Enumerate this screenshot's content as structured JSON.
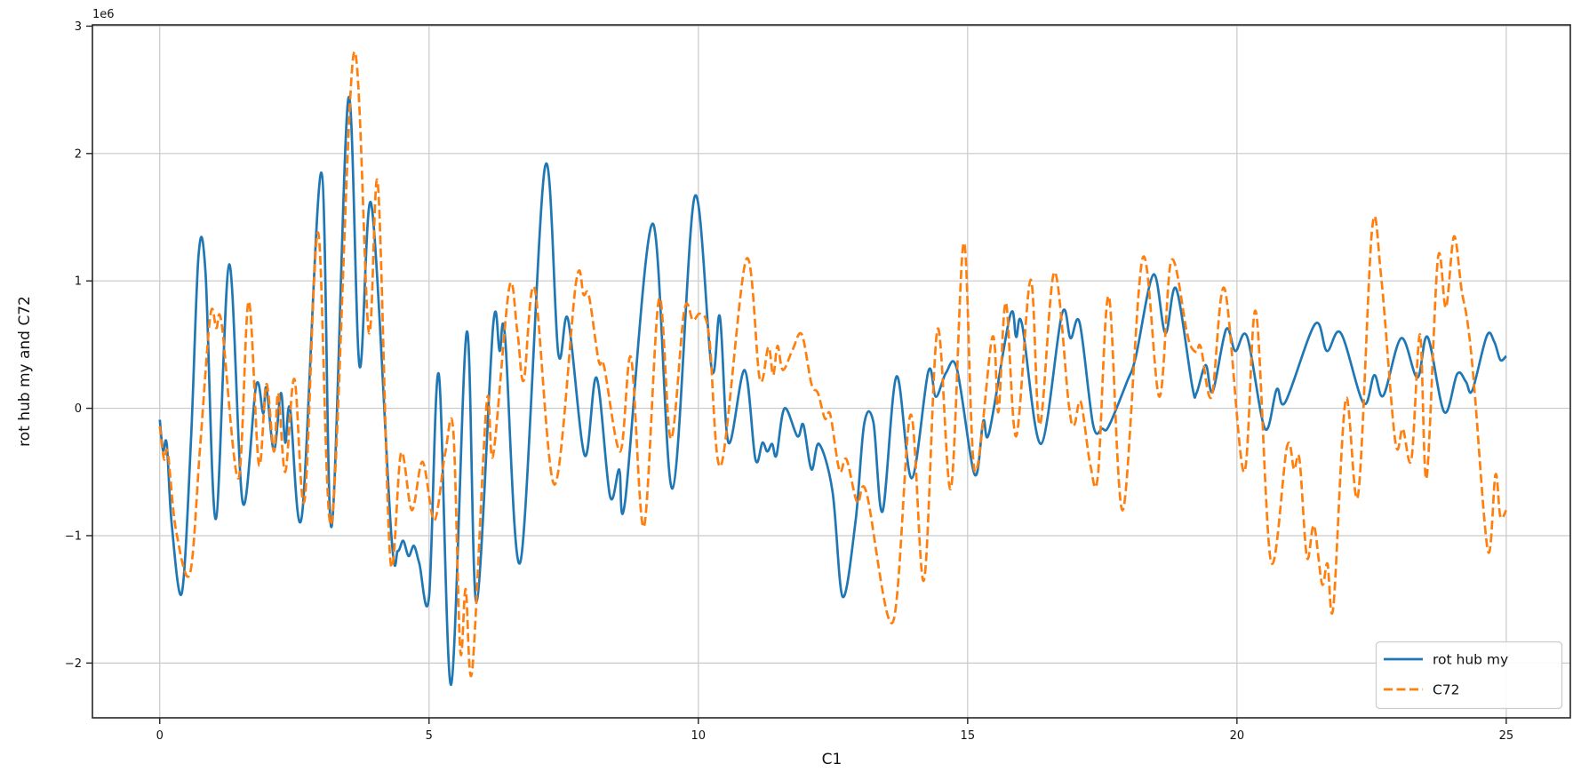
{
  "axes": {
    "xlabel": "C1",
    "ylabel": "rot hub my and C72",
    "offset_text": "1e6",
    "x_tick_labels": [
      "0",
      "5",
      "10",
      "15",
      "20",
      "25"
    ],
    "y_tick_labels": [
      "−2",
      "−1",
      "0",
      "1",
      "2",
      "3"
    ]
  },
  "legend": {
    "position": "lower right",
    "items": [
      {
        "label": "rot hub my",
        "color": "#1f77b4",
        "style": "solid"
      },
      {
        "label": "C72",
        "color": "#ff7f0e",
        "style": "dashed"
      }
    ]
  },
  "chart_data": {
    "type": "line",
    "title": "",
    "xlabel": "C1",
    "ylabel": "rot hub my and C72",
    "grid": true,
    "legend_position": "lower right",
    "x_ticks": [
      0,
      5,
      10,
      15,
      20,
      25
    ],
    "y_ticks_e6": [
      -2,
      -1,
      0,
      1,
      2,
      3
    ],
    "xlim": [
      -1.25,
      26.19
    ],
    "ylim_e6": [
      -2.43,
      3.01
    ],
    "y_unit_multiplier": 1000000,
    "series": [
      {
        "name": "rot hub my",
        "color": "#1f77b4",
        "style": "solid",
        "points_e6": [
          [
            0,
            -0.09
          ],
          [
            0.06,
            -0.33
          ],
          [
            0.13,
            -0.28
          ],
          [
            0.22,
            -0.9
          ],
          [
            0.41,
            -1.45
          ],
          [
            0.58,
            -0.25
          ],
          [
            0.72,
            1.2
          ],
          [
            0.85,
            1.06
          ],
          [
            1.04,
            -0.87
          ],
          [
            1.29,
            1.13
          ],
          [
            1.54,
            -0.74
          ],
          [
            1.79,
            0.18
          ],
          [
            1.92,
            -0.04
          ],
          [
            1.98,
            0.16
          ],
          [
            2.12,
            -0.33
          ],
          [
            2.25,
            0.12
          ],
          [
            2.33,
            -0.27
          ],
          [
            2.42,
            0
          ],
          [
            2.64,
            -0.84
          ],
          [
            3.0,
            1.85
          ],
          [
            3.19,
            -0.93
          ],
          [
            3.5,
            2.43
          ],
          [
            3.71,
            0.33
          ],
          [
            3.93,
            1.6
          ],
          [
            4.3,
            -1.0
          ],
          [
            4.42,
            -1.12
          ],
          [
            4.52,
            -1.04
          ],
          [
            4.62,
            -1.16
          ],
          [
            4.72,
            -1.08
          ],
          [
            4.82,
            -1.22
          ],
          [
            5.0,
            -1.48
          ],
          [
            5.18,
            0.27
          ],
          [
            5.41,
            -2.17
          ],
          [
            5.7,
            0.6
          ],
          [
            5.88,
            -1.52
          ],
          [
            6.19,
            0.65
          ],
          [
            6.31,
            0.45
          ],
          [
            6.41,
            0.57
          ],
          [
            6.7,
            -1.2
          ],
          [
            7.15,
            1.89
          ],
          [
            7.4,
            0.43
          ],
          [
            7.58,
            0.7
          ],
          [
            7.89,
            -0.37
          ],
          [
            8.11,
            0.24
          ],
          [
            8.36,
            -0.69
          ],
          [
            8.53,
            -0.48
          ],
          [
            8.64,
            -0.73
          ],
          [
            9.15,
            1.45
          ],
          [
            9.52,
            -0.63
          ],
          [
            9.93,
            1.66
          ],
          [
            10.25,
            0.3
          ],
          [
            10.4,
            0.72
          ],
          [
            10.56,
            -0.27
          ],
          [
            10.86,
            0.3
          ],
          [
            11.06,
            -0.4
          ],
          [
            11.19,
            -0.27
          ],
          [
            11.28,
            -0.34
          ],
          [
            11.37,
            -0.28
          ],
          [
            11.45,
            -0.37
          ],
          [
            11.6,
            0
          ],
          [
            11.84,
            -0.22
          ],
          [
            11.95,
            -0.13
          ],
          [
            12.1,
            -0.48
          ],
          [
            12.24,
            -0.28
          ],
          [
            12.49,
            -0.65
          ],
          [
            12.68,
            -1.48
          ],
          [
            12.92,
            -0.88
          ],
          [
            13.08,
            -0.12
          ],
          [
            13.25,
            -0.11
          ],
          [
            13.42,
            -0.81
          ],
          [
            13.68,
            0.25
          ],
          [
            13.96,
            -0.55
          ],
          [
            14.27,
            0.29
          ],
          [
            14.41,
            0.09
          ],
          [
            14.6,
            0.28
          ],
          [
            14.8,
            0.31
          ],
          [
            15.13,
            -0.52
          ],
          [
            15.29,
            -0.1
          ],
          [
            15.4,
            -0.19
          ],
          [
            15.79,
            0.73
          ],
          [
            15.9,
            0.56
          ],
          [
            16.01,
            0.66
          ],
          [
            16.36,
            -0.28
          ],
          [
            16.75,
            0.74
          ],
          [
            16.91,
            0.55
          ],
          [
            17.08,
            0.67
          ],
          [
            17.33,
            -0.13
          ],
          [
            17.5,
            -0.16
          ],
          [
            17.62,
            -0.14
          ],
          [
            17.96,
            0.21
          ],
          [
            18.12,
            0.4
          ],
          [
            18.45,
            1.05
          ],
          [
            18.67,
            0.59
          ],
          [
            18.87,
            0.94
          ],
          [
            19.17,
            0.17
          ],
          [
            19.25,
            0.12
          ],
          [
            19.42,
            0.34
          ],
          [
            19.55,
            0.13
          ],
          [
            19.8,
            0.62
          ],
          [
            19.97,
            0.45
          ],
          [
            20.19,
            0.56
          ],
          [
            20.52,
            -0.16
          ],
          [
            20.74,
            0.15
          ],
          [
            20.9,
            0.05
          ],
          [
            21.45,
            0.66
          ],
          [
            21.67,
            0.45
          ],
          [
            21.93,
            0.59
          ],
          [
            22.35,
            0.04
          ],
          [
            22.55,
            0.26
          ],
          [
            22.72,
            0.1
          ],
          [
            23.05,
            0.55
          ],
          [
            23.35,
            0.24
          ],
          [
            23.54,
            0.56
          ],
          [
            23.85,
            -0.03
          ],
          [
            24.09,
            0.27
          ],
          [
            24.25,
            0.21
          ],
          [
            24.37,
            0.14
          ],
          [
            24.64,
            0.57
          ],
          [
            24.78,
            0.52
          ],
          [
            24.89,
            0.38
          ],
          [
            25.0,
            0.41
          ]
        ]
      },
      {
        "name": "C72",
        "color": "#ff7f0e",
        "style": "dashed",
        "points_e6": [
          [
            0,
            -0.14
          ],
          [
            0.08,
            -0.4
          ],
          [
            0.15,
            -0.35
          ],
          [
            0.3,
            -0.95
          ],
          [
            0.56,
            -1.3
          ],
          [
            0.75,
            -0.3
          ],
          [
            0.94,
            0.73
          ],
          [
            1.05,
            0.63
          ],
          [
            1.15,
            0.66
          ],
          [
            1.46,
            -0.55
          ],
          [
            1.65,
            0.84
          ],
          [
            1.84,
            -0.44
          ],
          [
            1.98,
            0.19
          ],
          [
            2.12,
            -0.34
          ],
          [
            2.2,
            0.12
          ],
          [
            2.33,
            -0.5
          ],
          [
            2.5,
            0.23
          ],
          [
            2.69,
            -0.72
          ],
          [
            2.94,
            1.38
          ],
          [
            3.19,
            -0.9
          ],
          [
            3.6,
            2.78
          ],
          [
            3.88,
            0.6
          ],
          [
            4.05,
            1.76
          ],
          [
            4.28,
            -1.18
          ],
          [
            4.48,
            -0.35
          ],
          [
            4.68,
            -0.8
          ],
          [
            4.88,
            -0.42
          ],
          [
            5.1,
            -0.88
          ],
          [
            5.3,
            -0.35
          ],
          [
            5.45,
            -0.18
          ],
          [
            5.58,
            -1.9
          ],
          [
            5.68,
            -1.42
          ],
          [
            5.8,
            -2.06
          ],
          [
            6.07,
            0.04
          ],
          [
            6.19,
            -0.37
          ],
          [
            6.49,
            0.95
          ],
          [
            6.64,
            0.6
          ],
          [
            6.76,
            0.22
          ],
          [
            6.96,
            0.94
          ],
          [
            7.33,
            -0.6
          ],
          [
            7.73,
            0.99
          ],
          [
            7.87,
            0.89
          ],
          [
            7.97,
            0.88
          ],
          [
            8.15,
            0.37
          ],
          [
            8.25,
            0.33
          ],
          [
            8.55,
            -0.34
          ],
          [
            8.75,
            0.4
          ],
          [
            8.99,
            -0.93
          ],
          [
            9.27,
            0.86
          ],
          [
            9.49,
            -0.24
          ],
          [
            9.74,
            0.77
          ],
          [
            9.9,
            0.69
          ],
          [
            10.04,
            0.74
          ],
          [
            10.2,
            0.57
          ],
          [
            10.42,
            -0.45
          ],
          [
            10.89,
            1.17
          ],
          [
            11.14,
            0.23
          ],
          [
            11.3,
            0.48
          ],
          [
            11.39,
            0.26
          ],
          [
            11.47,
            0.49
          ],
          [
            11.57,
            0.3
          ],
          [
            11.75,
            0.46
          ],
          [
            11.92,
            0.58
          ],
          [
            12.1,
            0.19
          ],
          [
            12.22,
            0.12
          ],
          [
            12.35,
            -0.08
          ],
          [
            12.45,
            -0.05
          ],
          [
            12.62,
            -0.49
          ],
          [
            12.75,
            -0.4
          ],
          [
            12.95,
            -0.74
          ],
          [
            13.12,
            -0.66
          ],
          [
            13.61,
            -1.68
          ],
          [
            13.94,
            -0.05
          ],
          [
            14.19,
            -1.35
          ],
          [
            14.44,
            0.62
          ],
          [
            14.69,
            -0.63
          ],
          [
            14.93,
            1.3
          ],
          [
            15.13,
            -0.49
          ],
          [
            15.46,
            0.56
          ],
          [
            15.57,
            -0.03
          ],
          [
            15.71,
            0.83
          ],
          [
            15.9,
            -0.22
          ],
          [
            16.17,
            1.01
          ],
          [
            16.34,
            -0.13
          ],
          [
            16.61,
            1.07
          ],
          [
            16.88,
            0.02
          ],
          [
            16.98,
            -0.13
          ],
          [
            17.1,
            0.05
          ],
          [
            17.28,
            -0.45
          ],
          [
            17.42,
            -0.52
          ],
          [
            17.62,
            0.88
          ],
          [
            17.88,
            -0.8
          ],
          [
            18.25,
            1.18
          ],
          [
            18.56,
            0.09
          ],
          [
            18.78,
            1.16
          ],
          [
            19.06,
            0.62
          ],
          [
            19.14,
            0.49
          ],
          [
            19.25,
            0.44
          ],
          [
            19.33,
            0.48
          ],
          [
            19.53,
            0.09
          ],
          [
            19.77,
            0.94
          ],
          [
            20.13,
            -0.5
          ],
          [
            20.35,
            0.76
          ],
          [
            20.63,
            -1.2
          ],
          [
            20.93,
            -0.3
          ],
          [
            21.06,
            -0.48
          ],
          [
            21.16,
            -0.4
          ],
          [
            21.3,
            -1.17
          ],
          [
            21.43,
            -0.92
          ],
          [
            21.58,
            -1.38
          ],
          [
            21.68,
            -1.22
          ],
          [
            21.79,
            -1.56
          ],
          [
            22.02,
            0.07
          ],
          [
            22.25,
            -0.68
          ],
          [
            22.51,
            1.41
          ],
          [
            22.68,
            1.02
          ],
          [
            22.94,
            -0.26
          ],
          [
            23.08,
            -0.16
          ],
          [
            23.24,
            -0.4
          ],
          [
            23.4,
            0.58
          ],
          [
            23.52,
            -0.55
          ],
          [
            23.73,
            1.17
          ],
          [
            23.88,
            0.79
          ],
          [
            24.03,
            1.35
          ],
          [
            24.17,
            0.93
          ],
          [
            24.28,
            0.68
          ],
          [
            24.4,
            0.2
          ],
          [
            24.66,
            -1.12
          ],
          [
            24.8,
            -0.52
          ],
          [
            24.89,
            -0.85
          ],
          [
            25.0,
            -0.8
          ]
        ]
      }
    ]
  }
}
